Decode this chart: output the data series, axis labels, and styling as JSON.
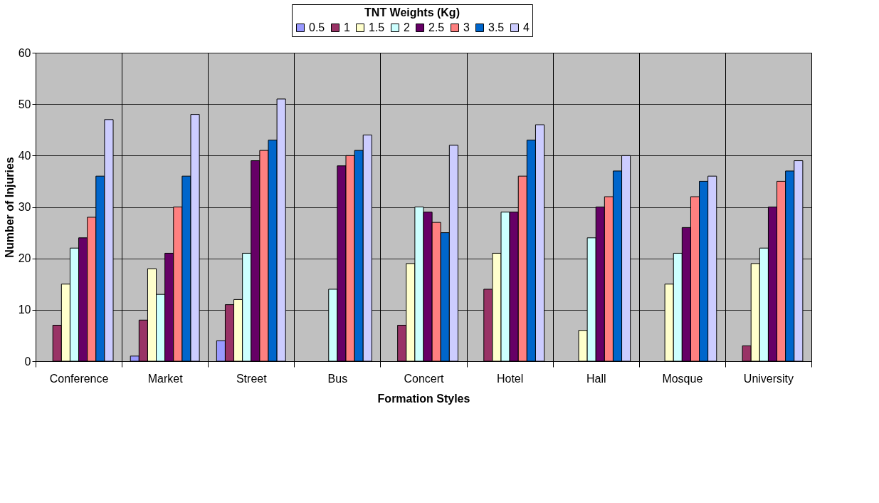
{
  "chart_data": {
    "type": "bar",
    "xlabel": "Formation Styles",
    "ylabel": "Number of Injuries",
    "legend_title": "TNT Weights (Kg)",
    "legend": "top",
    "categories": [
      "Conference",
      "Market",
      "Street",
      "Bus",
      "Concert",
      "Hotel",
      "Hall",
      "Mosque",
      "University"
    ],
    "ylim": [
      0,
      60
    ],
    "yticks": [
      0,
      10,
      20,
      30,
      40,
      50,
      60
    ],
    "grid": true,
    "series": [
      {
        "name": "0.5",
        "color": "#9999ff",
        "values": [
          null,
          1,
          4,
          null,
          null,
          null,
          null,
          null,
          null
        ]
      },
      {
        "name": "1",
        "color": "#993366",
        "values": [
          7,
          8,
          11,
          null,
          7,
          14,
          null,
          null,
          3
        ]
      },
      {
        "name": "1.5",
        "color": "#ffffcc",
        "values": [
          15,
          18,
          12,
          null,
          19,
          21,
          6,
          15,
          19
        ]
      },
      {
        "name": "2",
        "color": "#ccffff",
        "values": [
          22,
          13,
          21,
          14,
          30,
          29,
          24,
          21,
          22
        ]
      },
      {
        "name": "2.5",
        "color": "#660066",
        "values": [
          24,
          21,
          39,
          38,
          29,
          29,
          30,
          26,
          30
        ]
      },
      {
        "name": "3",
        "color": "#ff8080",
        "values": [
          28,
          30,
          41,
          40,
          27,
          36,
          32,
          32,
          35
        ]
      },
      {
        "name": "3.5",
        "color": "#0066cc",
        "values": [
          36,
          36,
          43,
          41,
          25,
          43,
          37,
          35,
          37
        ]
      },
      {
        "name": "4",
        "color": "#ccccff",
        "values": [
          47,
          48,
          51,
          44,
          42,
          46,
          40,
          36,
          39
        ]
      }
    ]
  }
}
